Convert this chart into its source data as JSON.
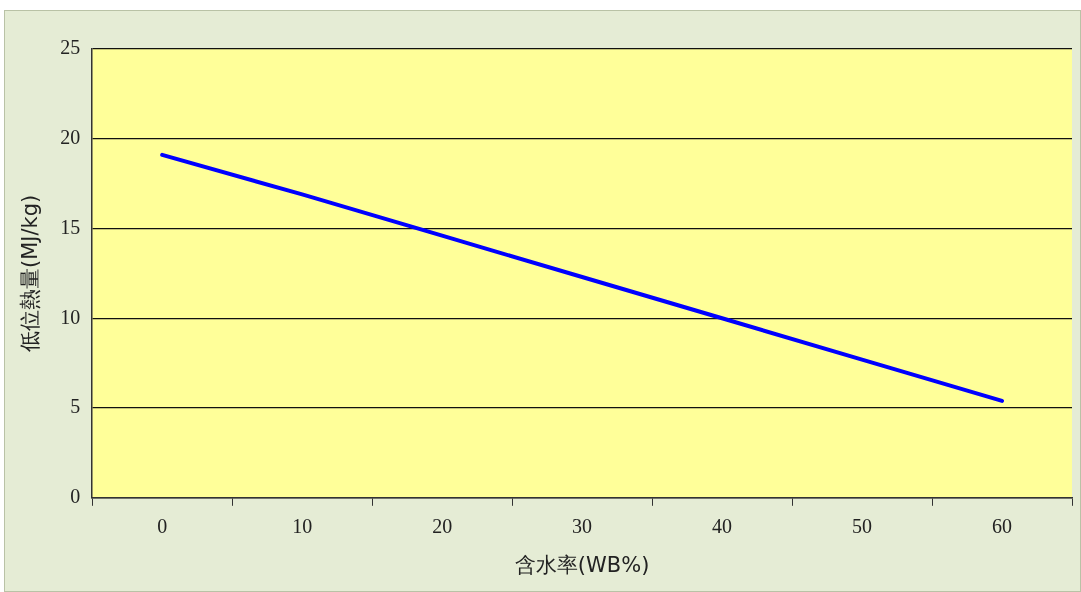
{
  "chart_data": {
    "type": "line",
    "xlabel": "含水率(WB%)",
    "ylabel": "低位熱量(MJ/kg)",
    "categories": [
      "0",
      "10",
      "20",
      "30",
      "40",
      "50",
      "60"
    ],
    "series": [
      {
        "color": "#0000ff",
        "values": [
          19.1,
          16.9,
          14.6,
          12.3,
          10.0,
          7.7,
          5.4
        ]
      }
    ],
    "ylim": [
      0,
      25
    ],
    "yticks": [
      0,
      5,
      10,
      15,
      20,
      25
    ],
    "grid": "y",
    "legend": false,
    "marker": "none",
    "line_style": "solid"
  }
}
